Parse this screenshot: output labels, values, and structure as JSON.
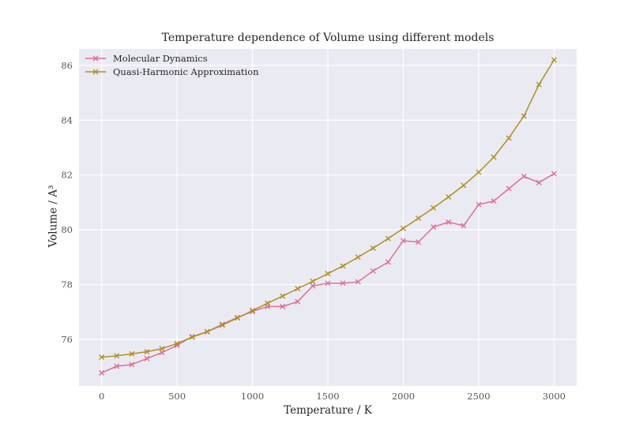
{
  "chart_data": {
    "type": "line",
    "title": "Temperature dependence of Volume using different models",
    "xlabel": "Temperature / K",
    "ylabel": "Volume / A³",
    "xlim": [
      -150,
      3150
    ],
    "ylim": [
      74.3,
      86.6
    ],
    "xticks": [
      0,
      500,
      1000,
      1500,
      2000,
      2500,
      3000
    ],
    "yticks": [
      76,
      78,
      80,
      82,
      84,
      86
    ],
    "grid": true,
    "legend_position": "upper-left",
    "marker": "x",
    "colors": {
      "axes_background": "#eaeaf2",
      "grid": "#ffffff",
      "tick_label": "#555555",
      "text": "#262626"
    },
    "x": [
      0,
      100,
      200,
      300,
      400,
      500,
      600,
      700,
      800,
      900,
      1000,
      1100,
      1200,
      1300,
      1400,
      1500,
      1600,
      1700,
      1800,
      1900,
      2000,
      2100,
      2200,
      2300,
      2400,
      2500,
      2600,
      2700,
      2800,
      2900,
      3000
    ],
    "series": [
      {
        "name": "Molecular Dynamics",
        "color": "#db7093",
        "values": [
          74.78,
          75.02,
          75.08,
          75.3,
          75.52,
          75.78,
          76.1,
          76.28,
          76.55,
          76.8,
          77.02,
          77.2,
          77.2,
          77.38,
          77.95,
          78.05,
          78.05,
          78.1,
          78.5,
          78.82,
          79.6,
          79.55,
          80.1,
          80.28,
          80.15,
          80.92,
          81.05,
          81.5,
          81.95,
          81.72,
          82.05
        ]
      },
      {
        "name": "Quasi-Harmonic Approximation",
        "color": "#b08d24",
        "values": [
          75.35,
          75.4,
          75.47,
          75.55,
          75.66,
          75.85,
          76.08,
          76.28,
          76.52,
          76.78,
          77.05,
          77.32,
          77.58,
          77.85,
          78.12,
          78.4,
          78.68,
          79.0,
          79.33,
          79.68,
          80.05,
          80.42,
          80.8,
          81.2,
          81.62,
          82.1,
          82.65,
          83.35,
          84.15,
          85.3,
          86.2
        ]
      }
    ]
  }
}
